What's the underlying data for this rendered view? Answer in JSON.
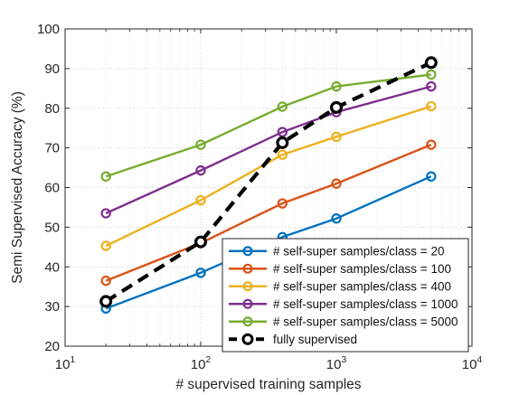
{
  "chart_data": {
    "type": "line",
    "xlabel": "# supervised training samples",
    "ylabel": "Semi Supervised Accuracy (%)",
    "xscale": "log",
    "xlim": [
      10,
      10000
    ],
    "ylim": [
      20,
      100
    ],
    "yticks": [
      20,
      30,
      40,
      50,
      60,
      70,
      80,
      90,
      100
    ],
    "xticks": [
      {
        "base": "10",
        "exp": "1",
        "value": 10
      },
      {
        "base": "10",
        "exp": "2",
        "value": 100
      },
      {
        "base": "10",
        "exp": "3",
        "value": 1000
      },
      {
        "base": "10",
        "exp": "4",
        "value": 10000
      }
    ],
    "x": [
      20,
      100,
      400,
      1000,
      5000
    ],
    "grid": true,
    "minor_grid": true,
    "legend_position": "bottom-right",
    "series": [
      {
        "name": "# self-super samples/class = 20",
        "values": [
          29.5,
          38.5,
          47.5,
          52.2,
          62.8
        ],
        "color": "#0072bd",
        "style": "solid"
      },
      {
        "name": "# self-super samples/class = 100",
        "values": [
          36.5,
          46.0,
          56.0,
          61.0,
          70.8
        ],
        "color": "#d95319",
        "style": "solid"
      },
      {
        "name": "# self-super samples/class = 400",
        "values": [
          45.3,
          56.8,
          68.3,
          72.8,
          80.5
        ],
        "color": "#edb120",
        "style": "solid"
      },
      {
        "name": "# self-super samples/class = 1000",
        "values": [
          53.5,
          64.3,
          74.0,
          79.0,
          85.5
        ],
        "color": "#7e2f8e",
        "style": "solid"
      },
      {
        "name": "# self-super samples/class = 5000",
        "values": [
          62.8,
          70.8,
          80.4,
          85.5,
          88.5
        ],
        "color": "#77ac30",
        "style": "solid"
      },
      {
        "name": "fully supervised",
        "values": [
          31.3,
          46.3,
          71.3,
          80.2,
          91.5
        ],
        "color": "#000000",
        "style": "dashed"
      }
    ]
  }
}
